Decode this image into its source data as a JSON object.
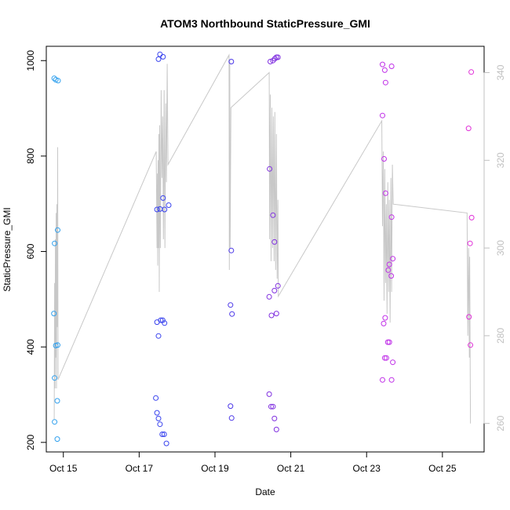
{
  "chart_data": {
    "type": "scatter",
    "title": "ATOM3 Northbound StaticPressure_GMI",
    "xlabel": "Date",
    "ylabel": "StaticPressure_GMI",
    "y2label": "",
    "grid": false,
    "x_ticks": [
      {
        "day": 15,
        "label": "Oct 15"
      },
      {
        "day": 17,
        "label": "Oct 17"
      },
      {
        "day": 19,
        "label": "Oct 19"
      },
      {
        "day": 21,
        "label": "Oct 21"
      },
      {
        "day": 23,
        "label": "Oct 23"
      },
      {
        "day": 25,
        "label": "Oct 25"
      }
    ],
    "y_ticks": [
      200,
      400,
      600,
      800,
      1000
    ],
    "y2_ticks": [
      260,
      280,
      300,
      320,
      340
    ],
    "xlim": [
      14.55,
      26.1
    ],
    "ylim": [
      180,
      1030
    ],
    "y2lim": [
      253.5,
      346
    ],
    "colors": {
      "line": "#c8c8c8",
      "axis": "#000000",
      "right_axis": "#c0c0c0"
    },
    "points": [
      {
        "x": 14.76,
        "y": 963,
        "color": "#30a0ee"
      },
      {
        "x": 14.8,
        "y": 960,
        "color": "#30a0ee"
      },
      {
        "x": 14.86,
        "y": 958,
        "color": "#30a0ee"
      },
      {
        "x": 14.77,
        "y": 617,
        "color": "#30a0ee"
      },
      {
        "x": 14.85,
        "y": 645,
        "color": "#30a0ee"
      },
      {
        "x": 14.75,
        "y": 470,
        "color": "#30a0ee"
      },
      {
        "x": 14.8,
        "y": 403,
        "color": "#30a0ee"
      },
      {
        "x": 14.85,
        "y": 404,
        "color": "#30a0ee"
      },
      {
        "x": 14.77,
        "y": 335,
        "color": "#30a0ee"
      },
      {
        "x": 14.84,
        "y": 287,
        "color": "#30a0ee"
      },
      {
        "x": 14.77,
        "y": 243,
        "color": "#30a0ee"
      },
      {
        "x": 14.84,
        "y": 207,
        "color": "#30a0ee"
      },
      {
        "x": 17.55,
        "y": 1013,
        "color": "#3a44ee"
      },
      {
        "x": 17.63,
        "y": 1008,
        "color": "#3a44ee"
      },
      {
        "x": 17.51,
        "y": 1003,
        "color": "#3a44ee"
      },
      {
        "x": 17.63,
        "y": 712,
        "color": "#3a44ee"
      },
      {
        "x": 17.78,
        "y": 697,
        "color": "#3a44ee"
      },
      {
        "x": 17.47,
        "y": 688,
        "color": "#3a44ee"
      },
      {
        "x": 17.55,
        "y": 689,
        "color": "#3a44ee"
      },
      {
        "x": 17.67,
        "y": 688,
        "color": "#3a44ee"
      },
      {
        "x": 17.47,
        "y": 452,
        "color": "#3a44ee"
      },
      {
        "x": 17.57,
        "y": 456,
        "color": "#3a44ee"
      },
      {
        "x": 17.62,
        "y": 456,
        "color": "#3a44ee"
      },
      {
        "x": 17.67,
        "y": 450,
        "color": "#3a44ee"
      },
      {
        "x": 17.51,
        "y": 423,
        "color": "#3a44ee"
      },
      {
        "x": 17.44,
        "y": 293,
        "color": "#3a44ee"
      },
      {
        "x": 17.47,
        "y": 262,
        "color": "#3a44ee"
      },
      {
        "x": 17.51,
        "y": 250,
        "color": "#3a44ee"
      },
      {
        "x": 17.55,
        "y": 238,
        "color": "#3a44ee"
      },
      {
        "x": 17.61,
        "y": 217,
        "color": "#3a44ee"
      },
      {
        "x": 17.66,
        "y": 217,
        "color": "#3a44ee"
      },
      {
        "x": 17.72,
        "y": 198,
        "color": "#3a44ee"
      },
      {
        "x": 19.43,
        "y": 998,
        "color": "#4c38e8"
      },
      {
        "x": 19.43,
        "y": 602,
        "color": "#4c38e8"
      },
      {
        "x": 19.41,
        "y": 488,
        "color": "#4c38e8"
      },
      {
        "x": 19.45,
        "y": 469,
        "color": "#4c38e8"
      },
      {
        "x": 19.41,
        "y": 276,
        "color": "#4c38e8"
      },
      {
        "x": 19.44,
        "y": 251,
        "color": "#4c38e8"
      },
      {
        "x": 20.46,
        "y": 998,
        "color": "#8030e0"
      },
      {
        "x": 20.53,
        "y": 1000,
        "color": "#8030e0"
      },
      {
        "x": 20.58,
        "y": 1004,
        "color": "#8030e0"
      },
      {
        "x": 20.62,
        "y": 1007,
        "color": "#8030e0"
      },
      {
        "x": 20.66,
        "y": 1007,
        "color": "#8030e0"
      },
      {
        "x": 20.44,
        "y": 773,
        "color": "#8030e0"
      },
      {
        "x": 20.53,
        "y": 676,
        "color": "#8030e0"
      },
      {
        "x": 20.57,
        "y": 620,
        "color": "#8030e0"
      },
      {
        "x": 20.66,
        "y": 528,
        "color": "#8030e0"
      },
      {
        "x": 20.57,
        "y": 518,
        "color": "#8030e0"
      },
      {
        "x": 20.43,
        "y": 505,
        "color": "#8030e0"
      },
      {
        "x": 20.49,
        "y": 466,
        "color": "#8030e0"
      },
      {
        "x": 20.62,
        "y": 470,
        "color": "#8030e0"
      },
      {
        "x": 20.43,
        "y": 301,
        "color": "#8030e0"
      },
      {
        "x": 20.48,
        "y": 275,
        "color": "#8030e0"
      },
      {
        "x": 20.53,
        "y": 275,
        "color": "#8030e0"
      },
      {
        "x": 20.57,
        "y": 250,
        "color": "#8030e0"
      },
      {
        "x": 20.62,
        "y": 227,
        "color": "#8030e0"
      },
      {
        "x": 23.42,
        "y": 992,
        "color": "#c030e8"
      },
      {
        "x": 23.48,
        "y": 980,
        "color": "#c030e8"
      },
      {
        "x": 23.66,
        "y": 988,
        "color": "#c030e8"
      },
      {
        "x": 23.5,
        "y": 954,
        "color": "#c030e8"
      },
      {
        "x": 23.42,
        "y": 885,
        "color": "#c030e8"
      },
      {
        "x": 23.46,
        "y": 794,
        "color": "#c030e8"
      },
      {
        "x": 23.5,
        "y": 722,
        "color": "#c030e8"
      },
      {
        "x": 23.66,
        "y": 672,
        "color": "#c030e8"
      },
      {
        "x": 23.69,
        "y": 585,
        "color": "#c030e8"
      },
      {
        "x": 23.6,
        "y": 573,
        "color": "#c030e8"
      },
      {
        "x": 23.57,
        "y": 561,
        "color": "#c030e8"
      },
      {
        "x": 23.65,
        "y": 549,
        "color": "#c030e8"
      },
      {
        "x": 23.49,
        "y": 461,
        "color": "#c030e8"
      },
      {
        "x": 23.45,
        "y": 449,
        "color": "#c030e8"
      },
      {
        "x": 23.56,
        "y": 410,
        "color": "#c030e8"
      },
      {
        "x": 23.6,
        "y": 410,
        "color": "#c030e8"
      },
      {
        "x": 23.48,
        "y": 377,
        "color": "#c030e8"
      },
      {
        "x": 23.52,
        "y": 377,
        "color": "#c030e8"
      },
      {
        "x": 23.69,
        "y": 368,
        "color": "#c030e8"
      },
      {
        "x": 23.42,
        "y": 331,
        "color": "#c030e8"
      },
      {
        "x": 23.66,
        "y": 331,
        "color": "#c030e8"
      },
      {
        "x": 25.76,
        "y": 976,
        "color": "#e030d8"
      },
      {
        "x": 25.69,
        "y": 858,
        "color": "#e030d8"
      },
      {
        "x": 25.77,
        "y": 671,
        "color": "#e030d8"
      },
      {
        "x": 25.73,
        "y": 617,
        "color": "#e030d8"
      },
      {
        "x": 25.7,
        "y": 463,
        "color": "#e030d8"
      },
      {
        "x": 25.74,
        "y": 404,
        "color": "#e030d8"
      }
    ],
    "line_series": [
      [
        14.76,
        261
      ],
      [
        14.77,
        292
      ],
      [
        14.78,
        268
      ],
      [
        14.79,
        302
      ],
      [
        14.8,
        275
      ],
      [
        14.81,
        308
      ],
      [
        14.82,
        268
      ],
      [
        14.83,
        310
      ],
      [
        14.84,
        282
      ],
      [
        14.85,
        323
      ],
      [
        14.86,
        270
      ],
      [
        17.45,
        322
      ],
      [
        17.47,
        300
      ],
      [
        17.48,
        317
      ],
      [
        17.49,
        296
      ],
      [
        17.5,
        320
      ],
      [
        17.51,
        300
      ],
      [
        17.52,
        326
      ],
      [
        17.53,
        290
      ],
      [
        17.54,
        328
      ],
      [
        17.56,
        300
      ],
      [
        17.58,
        336
      ],
      [
        17.6,
        316
      ],
      [
        17.62,
        330
      ],
      [
        17.64,
        302
      ],
      [
        17.66,
        336
      ],
      [
        17.68,
        300
      ],
      [
        17.7,
        333
      ],
      [
        17.72,
        315
      ],
      [
        17.74,
        342
      ],
      [
        17.76,
        319
      ],
      [
        19.37,
        344
      ],
      [
        19.38,
        295
      ],
      [
        19.39,
        343
      ],
      [
        19.4,
        300
      ],
      [
        19.42,
        332
      ],
      [
        20.43,
        340
      ],
      [
        20.44,
        302
      ],
      [
        20.46,
        335
      ],
      [
        20.48,
        297
      ],
      [
        20.5,
        332
      ],
      [
        20.52,
        300
      ],
      [
        20.54,
        330
      ],
      [
        20.56,
        297
      ],
      [
        20.58,
        331
      ],
      [
        20.6,
        295
      ],
      [
        20.62,
        326
      ],
      [
        20.64,
        293
      ],
      [
        20.66,
        311
      ],
      [
        20.67,
        289
      ],
      [
        23.4,
        329
      ],
      [
        23.42,
        305
      ],
      [
        23.44,
        322
      ],
      [
        23.46,
        288
      ],
      [
        23.48,
        318
      ],
      [
        23.5,
        292
      ],
      [
        23.52,
        310
      ],
      [
        23.54,
        285
      ],
      [
        23.56,
        315
      ],
      [
        23.58,
        290
      ],
      [
        23.6,
        311
      ],
      [
        23.62,
        283
      ],
      [
        23.64,
        316
      ],
      [
        23.66,
        290
      ],
      [
        23.68,
        319
      ],
      [
        23.7,
        310
      ],
      [
        25.65,
        308
      ],
      [
        25.67,
        280
      ],
      [
        25.69,
        300
      ],
      [
        25.71,
        275
      ],
      [
        25.72,
        298
      ],
      [
        25.74,
        260
      ]
    ]
  }
}
